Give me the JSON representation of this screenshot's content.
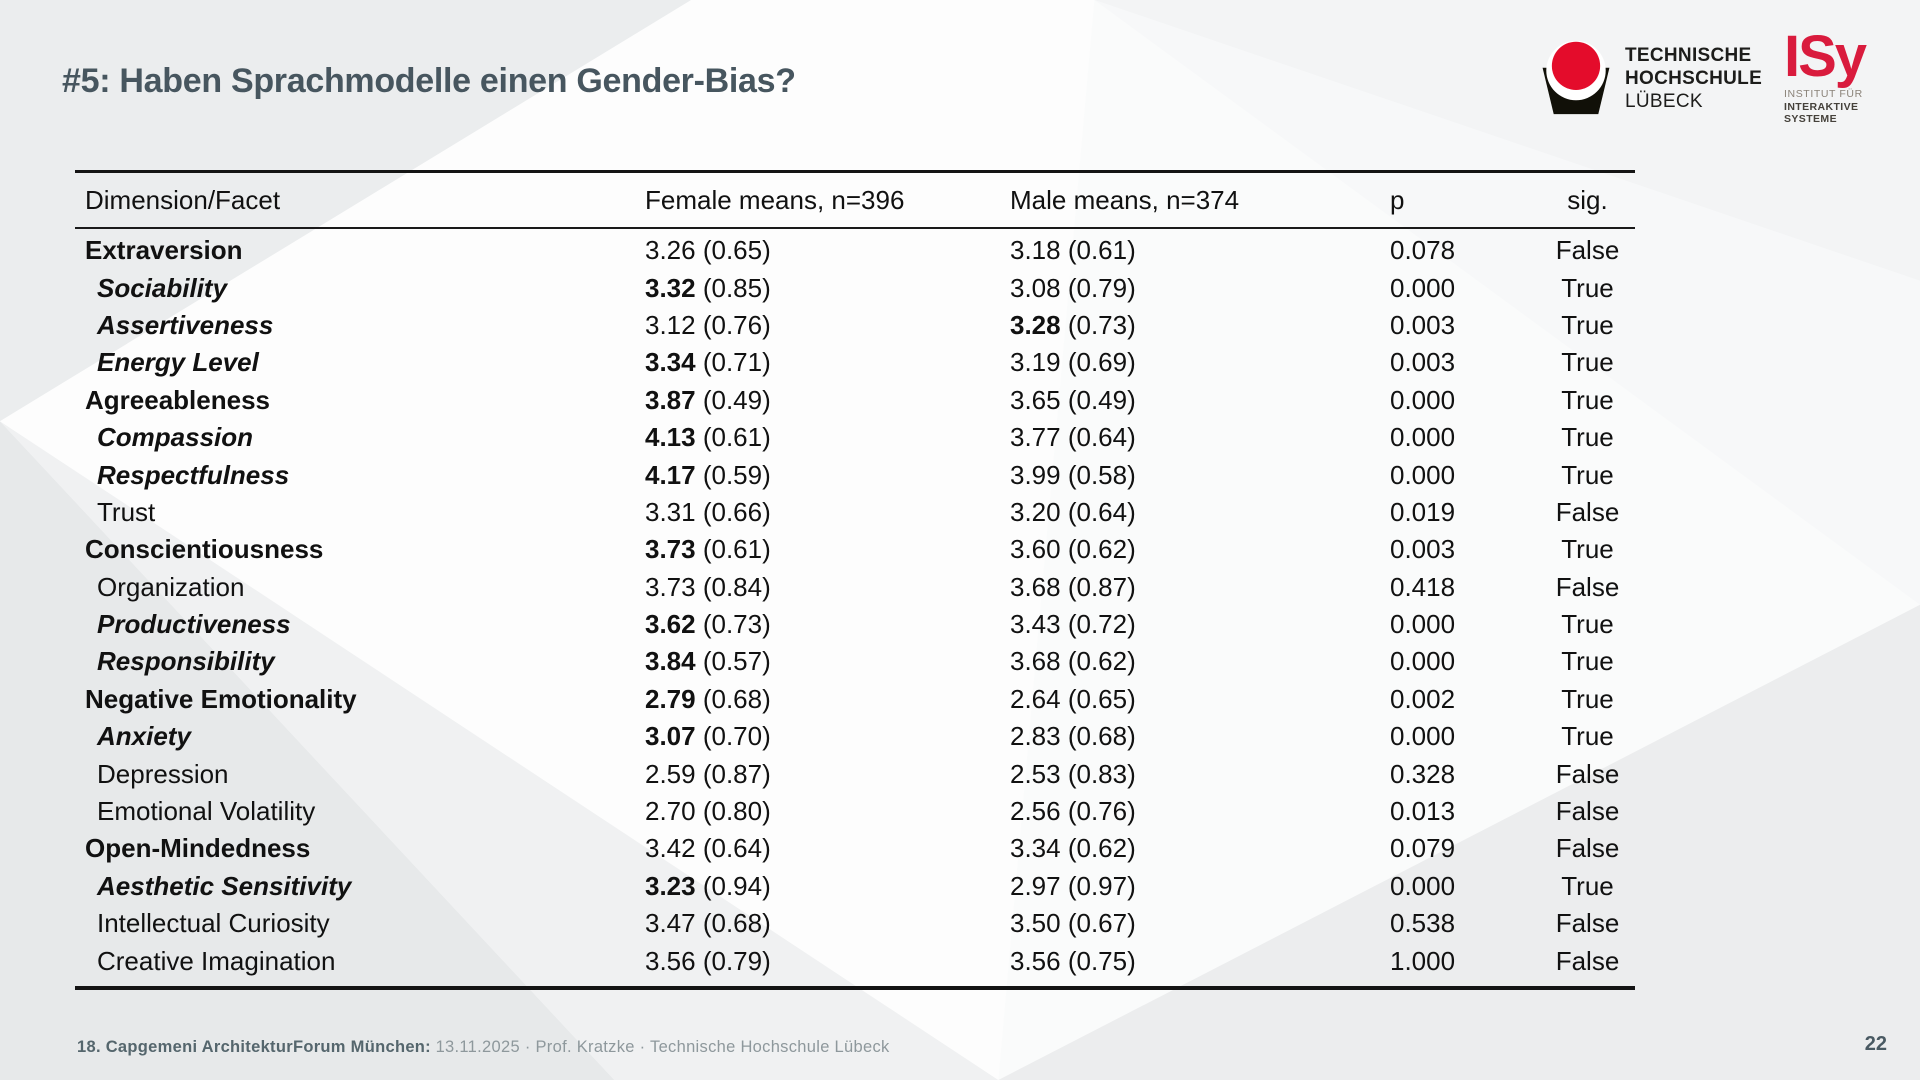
{
  "slide": {
    "title": "#5: Haben Sprachmodelle einen Gender-Bias?",
    "page_number": "22"
  },
  "logos": {
    "th": {
      "line1": "TECHNISCHE",
      "line2": "HOCHSCHULE",
      "line3": "LÜBECK"
    },
    "isy": {
      "wordmark": "ISy",
      "subline1": "INSTITUT FÜR",
      "subline2": "INTERAKTIVE SYSTEME"
    }
  },
  "footer": {
    "event_label": "18. Capgemeni ArchitekturForum München:",
    "details": "13.11.2025 · Prof. Kratzke · Technische Hochschule Lübeck"
  },
  "colors": {
    "accent_dark": "#47565f",
    "logo_red": "#d91b3d",
    "circle_red": "#e40c2b",
    "table_text": "#111111",
    "footer_muted": "#8e989c"
  },
  "chart_data": {
    "type": "table",
    "columns": [
      "Dimension/Facet",
      "Female means, n=396",
      "Male means, n=374",
      "p",
      "sig."
    ],
    "rows": [
      {
        "label": "Extraversion",
        "style": "dimension",
        "female": "3.26",
        "female_sd": "(0.65)",
        "female_emph": false,
        "male": "3.18",
        "male_sd": "(0.61)",
        "male_emph": false,
        "p": "0.078",
        "sig": "False"
      },
      {
        "label": "Sociability",
        "style": "facet-sig",
        "female": "3.32",
        "female_sd": "(0.85)",
        "female_emph": true,
        "male": "3.08",
        "male_sd": "(0.79)",
        "male_emph": false,
        "p": "0.000",
        "sig": "True"
      },
      {
        "label": "Assertiveness",
        "style": "facet-sig",
        "female": "3.12",
        "female_sd": "(0.76)",
        "female_emph": false,
        "male": "3.28",
        "male_sd": "(0.73)",
        "male_emph": true,
        "p": "0.003",
        "sig": "True"
      },
      {
        "label": "Energy Level",
        "style": "facet-sig",
        "female": "3.34",
        "female_sd": "(0.71)",
        "female_emph": true,
        "male": "3.19",
        "male_sd": "(0.69)",
        "male_emph": false,
        "p": "0.003",
        "sig": "True"
      },
      {
        "label": "Agreeableness",
        "style": "dimension",
        "female": "3.87",
        "female_sd": "(0.49)",
        "female_emph": true,
        "male": "3.65",
        "male_sd": "(0.49)",
        "male_emph": false,
        "p": "0.000",
        "sig": "True"
      },
      {
        "label": "Compassion",
        "style": "facet-sig",
        "female": "4.13",
        "female_sd": "(0.61)",
        "female_emph": true,
        "male": "3.77",
        "male_sd": "(0.64)",
        "male_emph": false,
        "p": "0.000",
        "sig": "True"
      },
      {
        "label": "Respectfulness",
        "style": "facet-sig",
        "female": "4.17",
        "female_sd": "(0.59)",
        "female_emph": true,
        "male": "3.99",
        "male_sd": "(0.58)",
        "male_emph": false,
        "p": "0.000",
        "sig": "True"
      },
      {
        "label": "Trust",
        "style": "facet",
        "female": "3.31",
        "female_sd": "(0.66)",
        "female_emph": false,
        "male": "3.20",
        "male_sd": "(0.64)",
        "male_emph": false,
        "p": "0.019",
        "sig": "False"
      },
      {
        "label": "Conscientiousness",
        "style": "dimension",
        "female": "3.73",
        "female_sd": "(0.61)",
        "female_emph": true,
        "male": "3.60",
        "male_sd": "(0.62)",
        "male_emph": false,
        "p": "0.003",
        "sig": "True"
      },
      {
        "label": "Organization",
        "style": "facet",
        "female": "3.73",
        "female_sd": "(0.84)",
        "female_emph": false,
        "male": "3.68",
        "male_sd": "(0.87)",
        "male_emph": false,
        "p": "0.418",
        "sig": "False"
      },
      {
        "label": "Productiveness",
        "style": "facet-sig",
        "female": "3.62",
        "female_sd": "(0.73)",
        "female_emph": true,
        "male": "3.43",
        "male_sd": "(0.72)",
        "male_emph": false,
        "p": "0.000",
        "sig": "True"
      },
      {
        "label": "Responsibility",
        "style": "facet-sig",
        "female": "3.84",
        "female_sd": "(0.57)",
        "female_emph": true,
        "male": "3.68",
        "male_sd": "(0.62)",
        "male_emph": false,
        "p": "0.000",
        "sig": "True"
      },
      {
        "label": "Negative Emotionality",
        "style": "dimension",
        "female": "2.79",
        "female_sd": "(0.68)",
        "female_emph": true,
        "male": "2.64",
        "male_sd": "(0.65)",
        "male_emph": false,
        "p": "0.002",
        "sig": "True"
      },
      {
        "label": "Anxiety",
        "style": "facet-sig",
        "female": "3.07",
        "female_sd": "(0.70)",
        "female_emph": true,
        "male": "2.83",
        "male_sd": "(0.68)",
        "male_emph": false,
        "p": "0.000",
        "sig": "True"
      },
      {
        "label": "Depression",
        "style": "facet",
        "female": "2.59",
        "female_sd": "(0.87)",
        "female_emph": false,
        "male": "2.53",
        "male_sd": "(0.83)",
        "male_emph": false,
        "p": "0.328",
        "sig": "False"
      },
      {
        "label": "Emotional Volatility",
        "style": "facet",
        "female": "2.70",
        "female_sd": "(0.80)",
        "female_emph": false,
        "male": "2.56",
        "male_sd": "(0.76)",
        "male_emph": false,
        "p": "0.013",
        "sig": "False"
      },
      {
        "label": "Open-Mindedness",
        "style": "dimension",
        "female": "3.42",
        "female_sd": "(0.64)",
        "female_emph": false,
        "male": "3.34",
        "male_sd": "(0.62)",
        "male_emph": false,
        "p": "0.079",
        "sig": "False"
      },
      {
        "label": "Aesthetic Sensitivity",
        "style": "facet-sig",
        "female": "3.23",
        "female_sd": "(0.94)",
        "female_emph": true,
        "male": "2.97",
        "male_sd": "(0.97)",
        "male_emph": false,
        "p": "0.000",
        "sig": "True"
      },
      {
        "label": "Intellectual Curiosity",
        "style": "facet",
        "female": "3.47",
        "female_sd": "(0.68)",
        "female_emph": false,
        "male": "3.50",
        "male_sd": "(0.67)",
        "male_emph": false,
        "p": "0.538",
        "sig": "False"
      },
      {
        "label": "Creative Imagination",
        "style": "facet",
        "female": "3.56",
        "female_sd": "(0.79)",
        "female_emph": false,
        "male": "3.56",
        "male_sd": "(0.75)",
        "male_emph": false,
        "p": "1.000",
        "sig": "False"
      }
    ]
  }
}
